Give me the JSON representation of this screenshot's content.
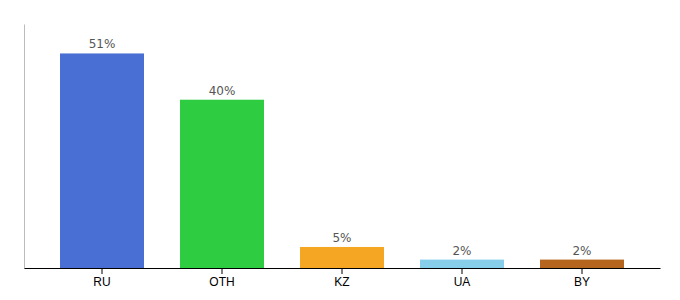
{
  "chart_data": {
    "type": "bar",
    "categories": [
      "RU",
      "OTH",
      "KZ",
      "UA",
      "BY"
    ],
    "values": [
      51,
      40,
      5,
      2,
      2
    ],
    "value_labels": [
      "51%",
      "40%",
      "5%",
      "2%",
      "2%"
    ],
    "colors": [
      "#4a6fd4",
      "#2ecc40",
      "#f5a623",
      "#87ceeb",
      "#b5651d"
    ],
    "ylim": [
      0,
      58
    ],
    "grid": false,
    "data_labels": true,
    "tick_labels": "x"
  }
}
